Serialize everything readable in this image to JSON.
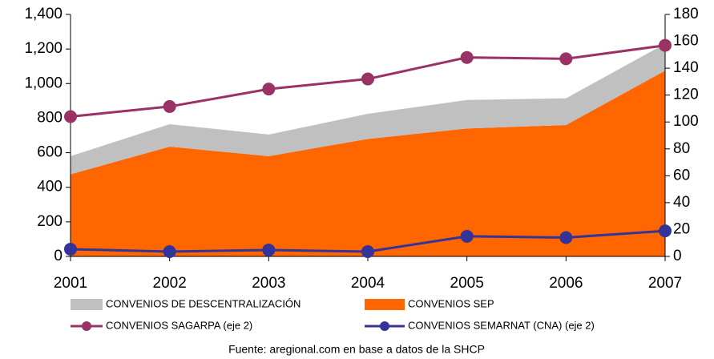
{
  "chart_data": {
    "type": "line",
    "categories": [
      "2001",
      "2002",
      "2003",
      "2004",
      "2005",
      "2006",
      "2007"
    ],
    "series": [
      {
        "name": "CONVENIOS DE DESCENTRALIZACIÓN",
        "type": "area",
        "color": "#c0c0c0",
        "values": [
          105,
          130,
          125,
          145,
          165,
          155,
          155
        ]
      },
      {
        "name": "CONVENIOS SEP",
        "type": "area",
        "color": "#ff6600",
        "values": [
          475,
          635,
          580,
          680,
          740,
          760,
          1075
        ]
      },
      {
        "name": "CONVENIOS SAGARPA (eje 2)",
        "type": "line",
        "axis": "y2",
        "color": "#993366",
        "values": [
          104,
          111.5,
          124.5,
          132,
          148,
          147,
          157
        ]
      },
      {
        "name": "CONVENIOS SEMARNAT (CNA) (eje 2)",
        "type": "line",
        "axis": "y2",
        "color": "#333399",
        "values": [
          5.4,
          3.6,
          4.8,
          3.6,
          15,
          14,
          19
        ]
      }
    ],
    "ylim": [
      0,
      1400
    ],
    "yticks": [
      0,
      200,
      400,
      600,
      800,
      {
        "value": 1000,
        "label": "1,000"
      },
      {
        "value": 1200,
        "label": "1,200"
      },
      {
        "value": 1400,
        "label": "1,400"
      }
    ],
    "y2lim": [
      0,
      180
    ],
    "y2ticks": [
      0,
      20,
      40,
      60,
      80,
      100,
      120,
      140,
      160,
      180
    ],
    "grid": false,
    "source": "Fuente: aregional.com en base a datos de la SHCP"
  }
}
